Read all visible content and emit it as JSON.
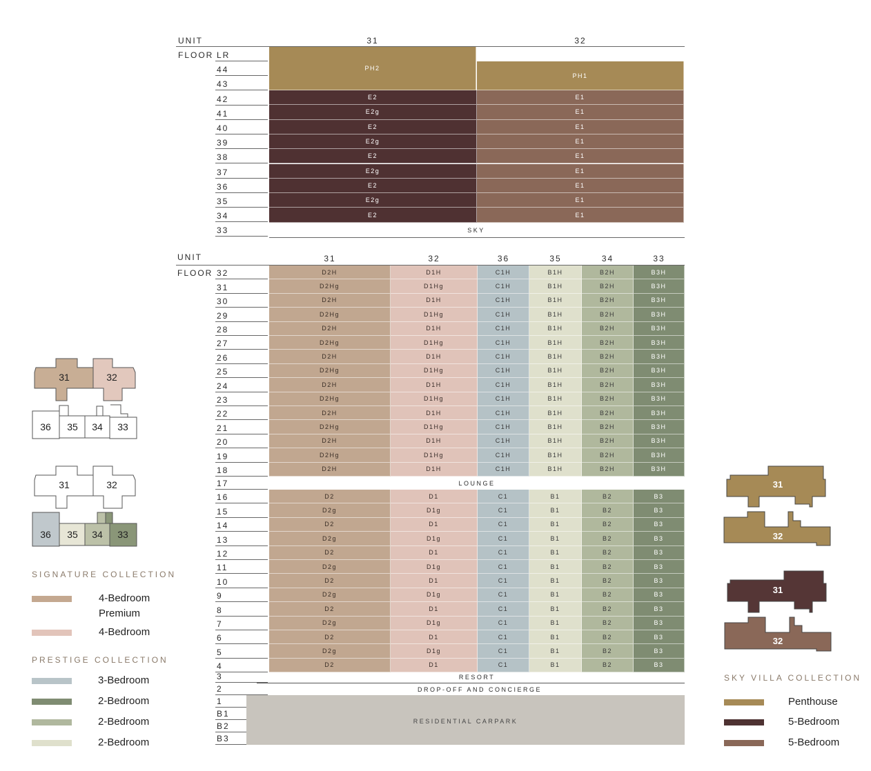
{
  "colors": {
    "PH": "#a68a56",
    "E2": "#4f3132",
    "E1": "#8a6858",
    "D2": "#c1a790",
    "D1": "#e0c3b9",
    "C1": "#b5c2c6",
    "B1": "#dfe0cc",
    "B2": "#b0b89d",
    "B3": "#7f8c72",
    "carpark": "#c8c4bd"
  },
  "top": {
    "unit_label": "UNIT",
    "floor_label": "FLOOR",
    "units": [
      "31",
      "32"
    ],
    "floors": [
      "LR",
      "44",
      "43",
      "42",
      "41",
      "40",
      "39",
      "38",
      "37",
      "36",
      "35",
      "34",
      "33"
    ],
    "ph2": "PH2",
    "ph1": "PH1",
    "rows": [
      [
        "42",
        "E2",
        "E1"
      ],
      [
        "41",
        "E2g",
        "E1"
      ],
      [
        "40",
        "E2",
        "E1"
      ],
      [
        "39",
        "E2g",
        "E1"
      ],
      [
        "38",
        "E2",
        "E1"
      ],
      [
        "37",
        "E2g",
        "E1"
      ],
      [
        "36",
        "E2",
        "E1"
      ],
      [
        "35",
        "E2g",
        "E1"
      ],
      [
        "34",
        "E2",
        "E1"
      ]
    ],
    "sky": "SKY"
  },
  "bottom": {
    "unit_label": "UNIT",
    "floor_label": "FLOOR",
    "units": [
      "31",
      "32",
      "36",
      "35",
      "34",
      "33"
    ],
    "upper_rows": [
      [
        "32",
        "D2H",
        "D1H",
        "C1H",
        "B1H",
        "B2H",
        "B3H"
      ],
      [
        "31",
        "D2Hg",
        "D1Hg",
        "C1H",
        "B1H",
        "B2H",
        "B3H"
      ],
      [
        "30",
        "D2H",
        "D1H",
        "C1H",
        "B1H",
        "B2H",
        "B3H"
      ],
      [
        "29",
        "D2Hg",
        "D1Hg",
        "C1H",
        "B1H",
        "B2H",
        "B3H"
      ],
      [
        "28",
        "D2H",
        "D1H",
        "C1H",
        "B1H",
        "B2H",
        "B3H"
      ],
      [
        "27",
        "D2Hg",
        "D1Hg",
        "C1H",
        "B1H",
        "B2H",
        "B3H"
      ],
      [
        "26",
        "D2H",
        "D1H",
        "C1H",
        "B1H",
        "B2H",
        "B3H"
      ],
      [
        "25",
        "D2Hg",
        "D1Hg",
        "C1H",
        "B1H",
        "B2H",
        "B3H"
      ],
      [
        "24",
        "D2H",
        "D1H",
        "C1H",
        "B1H",
        "B2H",
        "B3H"
      ],
      [
        "23",
        "D2Hg",
        "D1Hg",
        "C1H",
        "B1H",
        "B2H",
        "B3H"
      ],
      [
        "22",
        "D2H",
        "D1H",
        "C1H",
        "B1H",
        "B2H",
        "B3H"
      ],
      [
        "21",
        "D2Hg",
        "D1Hg",
        "C1H",
        "B1H",
        "B2H",
        "B3H"
      ],
      [
        "20",
        "D2H",
        "D1H",
        "C1H",
        "B1H",
        "B2H",
        "B3H"
      ],
      [
        "19",
        "D2Hg",
        "D1Hg",
        "C1H",
        "B1H",
        "B2H",
        "B3H"
      ],
      [
        "18",
        "D2H",
        "D1H",
        "C1H",
        "B1H",
        "B2H",
        "B3H"
      ]
    ],
    "lounge_floor": "17",
    "lounge": "LOUNGE",
    "lower_rows": [
      [
        "16",
        "D2",
        "D1",
        "C1",
        "B1",
        "B2",
        "B3"
      ],
      [
        "15",
        "D2g",
        "D1g",
        "C1",
        "B1",
        "B2",
        "B3"
      ],
      [
        "14",
        "D2",
        "D1",
        "C1",
        "B1",
        "B2",
        "B3"
      ],
      [
        "13",
        "D2g",
        "D1g",
        "C1",
        "B1",
        "B2",
        "B3"
      ],
      [
        "12",
        "D2",
        "D1",
        "C1",
        "B1",
        "B2",
        "B3"
      ],
      [
        "11",
        "D2g",
        "D1g",
        "C1",
        "B1",
        "B2",
        "B3"
      ],
      [
        "10",
        "D2",
        "D1",
        "C1",
        "B1",
        "B2",
        "B3"
      ],
      [
        "9",
        "D2g",
        "D1g",
        "C1",
        "B1",
        "B2",
        "B3"
      ],
      [
        "8",
        "D2",
        "D1",
        "C1",
        "B1",
        "B2",
        "B3"
      ],
      [
        "7",
        "D2g",
        "D1g",
        "C1",
        "B1",
        "B2",
        "B3"
      ],
      [
        "6",
        "D2",
        "D1",
        "C1",
        "B1",
        "B2",
        "B3"
      ],
      [
        "5",
        "D2g",
        "D1g",
        "C1",
        "B1",
        "B2",
        "B3"
      ],
      [
        "4",
        "D2",
        "D1",
        "C1",
        "B1",
        "B2",
        "B3"
      ]
    ],
    "resort_floor": "3",
    "resort": "RESORT",
    "dropoff_floor": "2",
    "dropoff": "DROP-OFF AND CONCIERGE",
    "carpark_floors": [
      "1",
      "B1",
      "B2",
      "B3"
    ],
    "carpark": "RESIDENTIAL CARPARK"
  },
  "plans": {
    "u31": "31",
    "u32": "32",
    "u33": "33",
    "u34": "34",
    "u35": "35",
    "u36": "36"
  },
  "legend": {
    "signature": {
      "title": "SIGNATURE COLLECTION",
      "items": [
        "4-Bedroom Premium",
        "4-Bedroom"
      ]
    },
    "prestige": {
      "title": "PRESTIGE COLLECTION",
      "items": [
        "3-Bedroom",
        "2-Bedroom",
        "2-Bedroom",
        "2-Bedroom"
      ]
    },
    "sky": {
      "title": "SKY VILLA COLLECTION",
      "items": [
        "Penthouse",
        "5-Bedroom",
        "5-Bedroom"
      ]
    }
  }
}
